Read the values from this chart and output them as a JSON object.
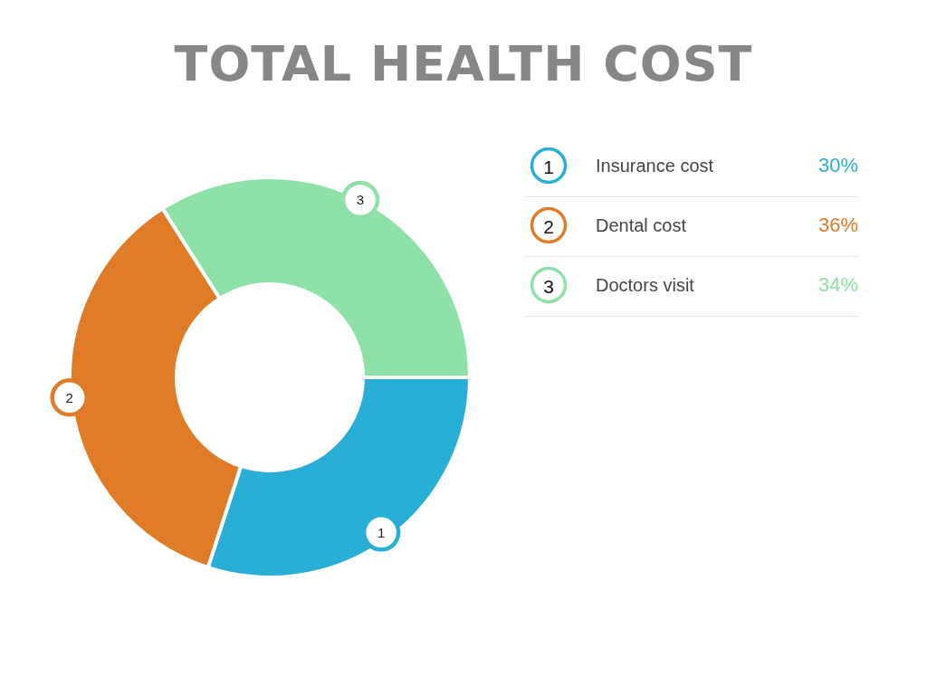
{
  "chart_data": {
    "type": "donut",
    "title": "TOTAL HEALTH COST",
    "categories": [
      "Insurance cost",
      "Dental cost",
      "Doctors visit"
    ],
    "values": [
      30,
      36,
      34
    ],
    "value_labels": [
      "30%",
      "36%",
      "34%"
    ],
    "colors": [
      "#29aed6",
      "#e07b28",
      "#8de0a6"
    ],
    "annotations": [
      "1",
      "2",
      "3"
    ],
    "legend": "top right"
  }
}
